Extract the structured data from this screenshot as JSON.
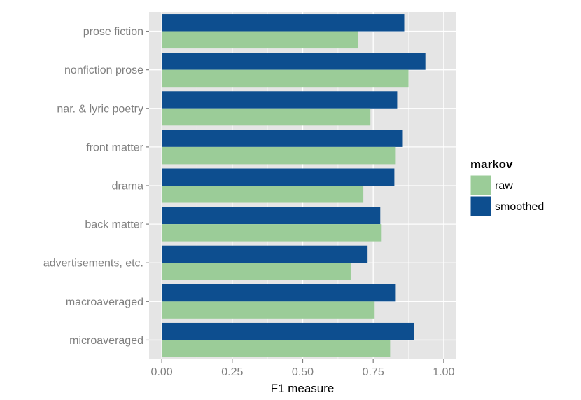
{
  "chart_data": {
    "type": "bar",
    "orientation": "horizontal",
    "categories": [
      "prose fiction",
      "nonfiction prose",
      "nar. & lyric poetry",
      "front matter",
      "drama",
      "back matter",
      "advertisements, etc.",
      "macroaveraged",
      "microaveraged"
    ],
    "series": [
      {
        "name": "smoothed",
        "color": "#0d4e8f",
        "values": [
          0.86,
          0.935,
          0.835,
          0.855,
          0.825,
          0.775,
          0.73,
          0.83,
          0.895
        ]
      },
      {
        "name": "raw",
        "color": "#9bcc98",
        "values": [
          0.695,
          0.875,
          0.74,
          0.83,
          0.715,
          0.78,
          0.67,
          0.755,
          0.81
        ]
      }
    ],
    "xlabel": "F1 measure",
    "ylabel": "",
    "xlim": [
      -0.045,
      1.045
    ],
    "xticks": [
      "0.00",
      "0.25",
      "0.50",
      "0.75",
      "1.00"
    ],
    "grid": true,
    "legend": {
      "title": "markov",
      "position": "right",
      "entries": [
        {
          "label": "raw",
          "color": "#9bcc98"
        },
        {
          "label": "smoothed",
          "color": "#0d4e8f"
        }
      ]
    }
  }
}
